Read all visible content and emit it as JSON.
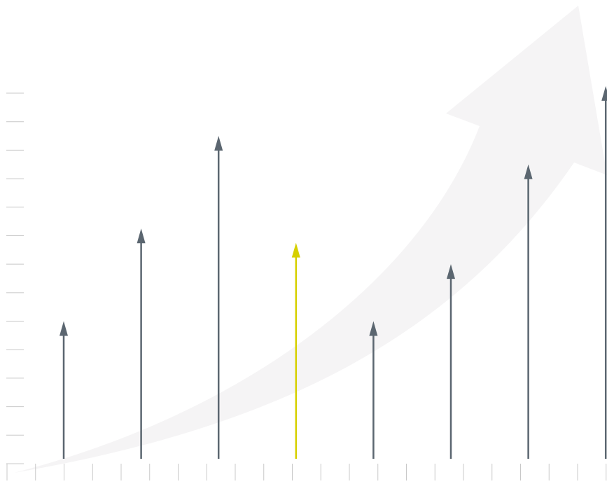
{
  "chart_data": {
    "type": "arrow",
    "categories": [
      null,
      null,
      null,
      null,
      null,
      null,
      null,
      null
    ],
    "values": [
      5,
      8.25,
      11.5,
      7.75,
      5,
      7,
      10.5,
      13.25
    ],
    "colors": [
      "#5b6670",
      "#5b6670",
      "#5b6670",
      "#d6d000",
      "#5b6670",
      "#5b6670",
      "#5b6670",
      "#5b6670"
    ],
    "ylim": [
      0,
      13
    ],
    "yticks": [
      0,
      1,
      2,
      3,
      4,
      5,
      6,
      7,
      8,
      9,
      10,
      11,
      12,
      13
    ]
  }
}
